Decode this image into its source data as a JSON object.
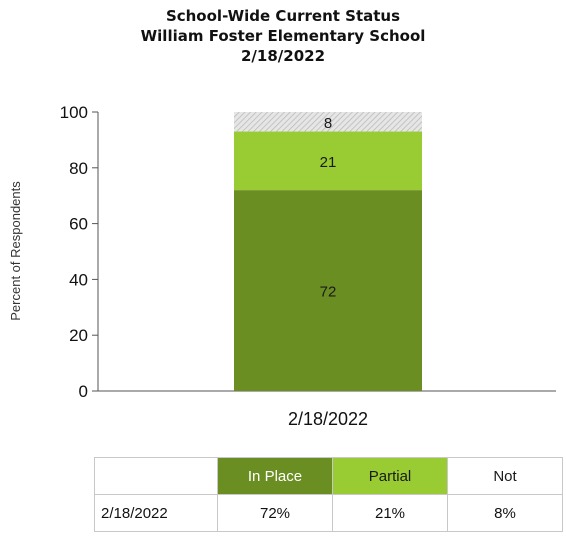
{
  "titles": {
    "line1": "School-Wide Current Status",
    "line2": "William Foster Elementary School",
    "line3": "2/18/2022"
  },
  "chart_data": {
    "type": "bar",
    "stacked": true,
    "categories": [
      "2/18/2022"
    ],
    "series": [
      {
        "name": "In Place",
        "values": [
          72
        ],
        "color": "#6b8e23",
        "label_color": "#1a1a1a"
      },
      {
        "name": "Partial",
        "values": [
          21
        ],
        "color": "#99cc33",
        "label_color": "#1a1a1a"
      },
      {
        "name": "Not",
        "values": [
          8
        ],
        "color": "#d9d9d9",
        "pattern": "hatch",
        "label_color": "#1a1a1a"
      }
    ],
    "ylabel": "Percent of Respondents",
    "xlabel": "",
    "ylim": [
      0,
      100
    ],
    "yticks": [
      0,
      20,
      40,
      60,
      80,
      100
    ],
    "grid": false,
    "legend": "table-below"
  },
  "table": {
    "headers": [
      "",
      "In Place",
      "Partial",
      "Not"
    ],
    "rows": [
      [
        "2/18/2022",
        "72%",
        "21%",
        "8%"
      ]
    ]
  }
}
